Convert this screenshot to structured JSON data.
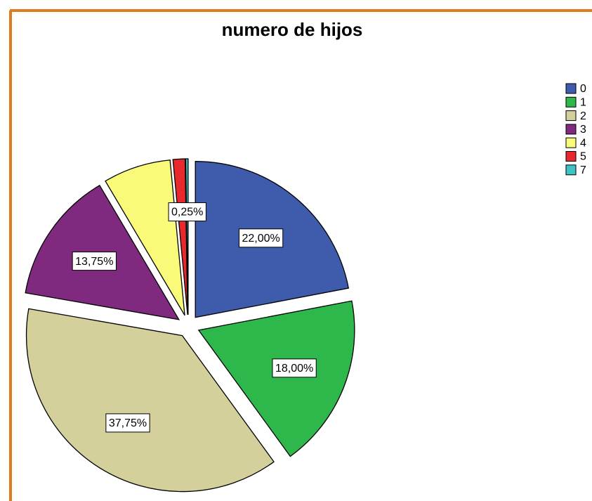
{
  "chart_data": {
    "type": "pie",
    "title": "numero de hijos",
    "categories": [
      "0",
      "1",
      "2",
      "3",
      "4",
      "5",
      "7"
    ],
    "values": [
      22.0,
      18.0,
      37.75,
      13.75,
      7.0,
      1.25,
      0.25
    ],
    "value_labels": [
      "22,00%",
      "18,00%",
      "37,75%",
      "13,75%",
      null,
      null,
      "0,25%"
    ],
    "colors": [
      "#3f5bac",
      "#2eb84b",
      "#d4d09c",
      "#7f2a7e",
      "#fafa7a",
      "#e8282c",
      "#3ec2c4"
    ],
    "legend": "right"
  }
}
